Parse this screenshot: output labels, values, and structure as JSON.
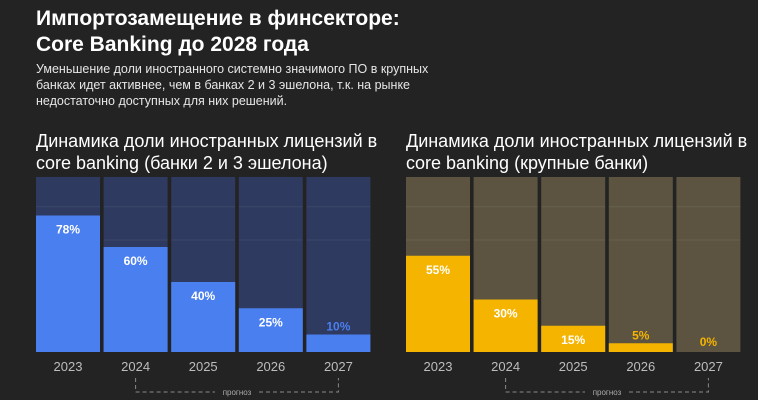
{
  "title_line1": "Импортозамещение в финсекторе:",
  "title_line2": "Core Banking до 2028 года",
  "subtitle": "Уменьшение доли иностранного системно значимого ПО в крупных банках идет активнее, чем в банках 2 и 3 эшелона, т.к. на рынке недостаточно доступных для них решений.",
  "chart_data": [
    {
      "type": "bar",
      "title": "Динамика доли иностранных лицензий в core banking (банки 2 и 3 эшелона)",
      "categories": [
        "2023",
        "2024",
        "2025",
        "2026",
        "2027"
      ],
      "values": [
        78,
        60,
        40,
        25,
        10
      ],
      "labels": [
        "78%",
        "60%",
        "40%",
        "25%",
        "10%"
      ],
      "ylim": [
        0,
        100
      ],
      "forecast_label": "прогноз",
      "forecast_range": [
        "2024",
        "2027"
      ],
      "colors": {
        "bar": "#4a7ff0",
        "background": "#2e3a5f",
        "label": "#ffffff"
      }
    },
    {
      "type": "bar",
      "title": "Динамика доли иностранных лицензий в core banking (крупные банки)",
      "categories": [
        "2023",
        "2024",
        "2025",
        "2026",
        "2027"
      ],
      "values": [
        55,
        30,
        15,
        5,
        0
      ],
      "labels": [
        "55%",
        "30%",
        "15%",
        "5%",
        "0%"
      ],
      "ylim": [
        0,
        100
      ],
      "forecast_label": "прогноз",
      "forecast_range": [
        "2024",
        "2027"
      ],
      "colors": {
        "bar": "#f5b400",
        "background": "#5c5440",
        "label": "#ffffff"
      }
    }
  ]
}
